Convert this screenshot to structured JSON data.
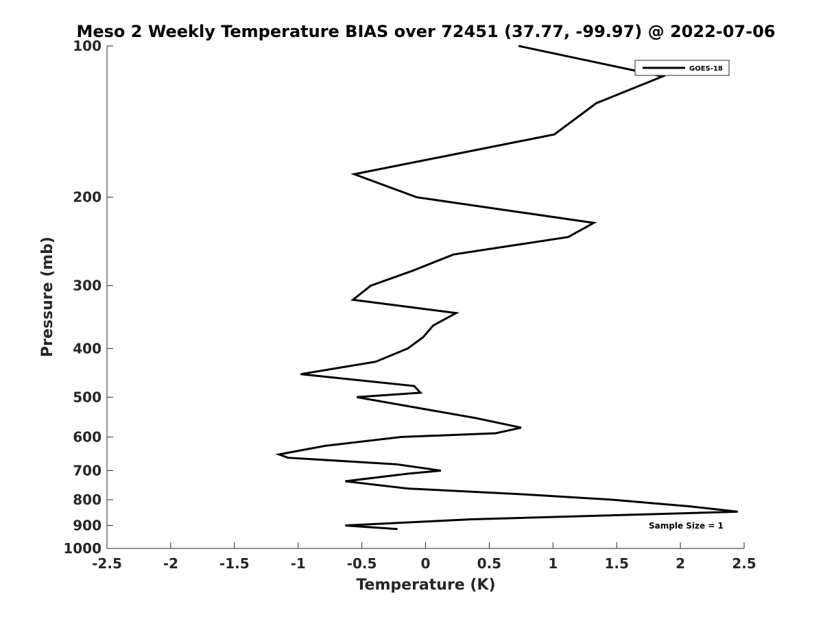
{
  "chart_data": {
    "type": "line",
    "title": "Meso 2 Weekly Temperature BIAS over 72451 (37.77, -99.97) @ 2022-07-06",
    "xlabel": "Temperature (K)",
    "ylabel": "Pressure (mb)",
    "xlim": [
      -2.5,
      2.5
    ],
    "ylim": [
      100,
      1000
    ],
    "y_scale": "log",
    "y_reversed": true,
    "x_ticks": [
      -2.5,
      -2,
      -1.5,
      -1,
      -0.5,
      0,
      0.5,
      1,
      1.5,
      2,
      2.5
    ],
    "x_tick_labels": [
      "-2.5",
      "-2",
      "-1.5",
      "-1",
      "-0.5",
      "0",
      "0.5",
      "1",
      "1.5",
      "2",
      "2.5"
    ],
    "y_ticks": [
      100,
      200,
      300,
      400,
      500,
      600,
      700,
      800,
      900,
      1000
    ],
    "y_tick_labels": [
      "100",
      "200",
      "300",
      "400",
      "500",
      "600",
      "700",
      "800",
      "900",
      "1000"
    ],
    "grid": false,
    "legend_position": "top-right",
    "annotation": "Sample Size = 1",
    "series": [
      {
        "name": "GOES-18",
        "color": "#000000",
        "points": [
          [
            0.73,
            100
          ],
          [
            1.86,
            115
          ],
          [
            1.34,
            130
          ],
          [
            1.01,
            150
          ],
          [
            -0.56,
            180
          ],
          [
            -0.07,
            200
          ],
          [
            1.32,
            225
          ],
          [
            1.12,
            240
          ],
          [
            0.22,
            260
          ],
          [
            -0.1,
            280
          ],
          [
            -0.43,
            300
          ],
          [
            -0.57,
            320
          ],
          [
            0.24,
            340
          ],
          [
            0.06,
            360
          ],
          [
            -0.02,
            380
          ],
          [
            -0.14,
            400
          ],
          [
            -0.39,
            425
          ],
          [
            -0.98,
            450
          ],
          [
            -0.09,
            475
          ],
          [
            -0.04,
            490
          ],
          [
            -0.54,
            500
          ],
          [
            0.39,
            550
          ],
          [
            0.75,
            575
          ],
          [
            0.55,
            590
          ],
          [
            -0.19,
            600
          ],
          [
            -0.79,
            625
          ],
          [
            -1.15,
            650
          ],
          [
            -1.08,
            660
          ],
          [
            -0.23,
            680
          ],
          [
            0.12,
            700
          ],
          [
            -0.14,
            710
          ],
          [
            -0.63,
            735
          ],
          [
            -0.14,
            760
          ],
          [
            0.75,
            780
          ],
          [
            1.47,
            800
          ],
          [
            2.08,
            825
          ],
          [
            2.45,
            845
          ],
          [
            1.4,
            860
          ],
          [
            0.36,
            875
          ],
          [
            -0.63,
            900
          ],
          [
            -0.22,
            915
          ]
        ]
      }
    ]
  }
}
